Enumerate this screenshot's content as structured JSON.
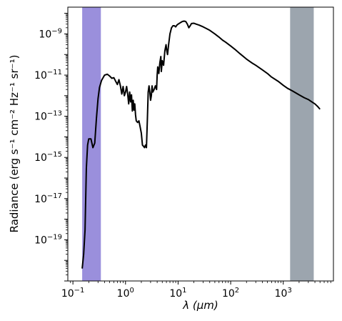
{
  "chart_data": {
    "type": "line",
    "title": "",
    "xlabel": "λ (μm)",
    "ylabel": "Radiance (erg s⁻¹ cm⁻² Hz⁻¹ sr⁻¹)",
    "xscale": "log",
    "yscale": "log",
    "xlim": [
      0.08,
      9000
    ],
    "ylim": [
      1e-21,
      2e-08
    ],
    "grid": false,
    "legend": "none",
    "x_ticks": [
      {
        "value": 0.1,
        "base": "10",
        "exp": "−1"
      },
      {
        "value": 1,
        "base": "10",
        "exp": "0"
      },
      {
        "value": 10,
        "base": "10",
        "exp": "1"
      },
      {
        "value": 100,
        "base": "10",
        "exp": "2"
      },
      {
        "value": 1000,
        "base": "10",
        "exp": "3"
      }
    ],
    "y_ticks": [
      {
        "value": 1e-19,
        "base": "10",
        "exp": "−19"
      },
      {
        "value": 1e-17,
        "base": "10",
        "exp": "−17"
      },
      {
        "value": 1e-15,
        "base": "10",
        "exp": "−15"
      },
      {
        "value": 1e-13,
        "base": "10",
        "exp": "−13"
      },
      {
        "value": 1e-11,
        "base": "10",
        "exp": "−11"
      },
      {
        "value": 1e-09,
        "base": "10",
        "exp": "−9"
      }
    ],
    "bands": [
      {
        "x_min": 0.15,
        "x_max": 0.34,
        "color": "#9a8fdc"
      },
      {
        "x_min": 1350,
        "x_max": 3800,
        "color": "#9ca5ae"
      }
    ],
    "series": [
      {
        "color": "#000000",
        "x": [
          0.15,
          0.16,
          0.17,
          0.18,
          0.19,
          0.2,
          0.22,
          0.24,
          0.26,
          0.28,
          0.3,
          0.32,
          0.35,
          0.4,
          0.45,
          0.5,
          0.55,
          0.6,
          0.65,
          0.7,
          0.75,
          0.8,
          0.85,
          0.9,
          0.95,
          1.0,
          1.05,
          1.1,
          1.15,
          1.2,
          1.25,
          1.3,
          1.35,
          1.4,
          1.45,
          1.5,
          1.55,
          1.6,
          1.7,
          1.8,
          1.9,
          2.0,
          2.1,
          2.2,
          2.3,
          2.4,
          2.5,
          2.6,
          2.7,
          2.8,
          2.9,
          3.0,
          3.1,
          3.2,
          3.3,
          3.5,
          3.7,
          3.9,
          4.0,
          4.1,
          4.3,
          4.5,
          4.7,
          4.8,
          5.0,
          5.3,
          5.6,
          5.9,
          6.1,
          6.3,
          6.6,
          7.0,
          7.5,
          8.0,
          8.5,
          9.0,
          9.5,
          10,
          11,
          12,
          13,
          14,
          15,
          16,
          17,
          18,
          20,
          22,
          25,
          30,
          35,
          40,
          50,
          60,
          70,
          80,
          100,
          120,
          150,
          200,
          250,
          300,
          400,
          500,
          600,
          800,
          1000,
          1200,
          1500,
          2000,
          2500,
          3000,
          3500,
          4000,
          4500,
          5000
        ],
        "y": [
          4e-21,
          2e-20,
          3e-19,
          3e-16,
          4e-15,
          8e-15,
          8e-15,
          3e-15,
          5e-15,
          8e-14,
          7e-13,
          2.5e-12,
          5.5e-12,
          1e-11,
          1.1e-11,
          9e-12,
          7e-12,
          7.5e-12,
          5e-12,
          3.5e-12,
          6e-12,
          3e-12,
          1.2e-12,
          2.8e-12,
          1e-12,
          1.5e-12,
          2.8e-12,
          1.2e-12,
          4e-13,
          1.5e-12,
          5e-13,
          1.1e-12,
          1.8e-13,
          6e-13,
          2e-13,
          4e-13,
          1.2e-13,
          6e-14,
          5e-14,
          6e-14,
          3e-14,
          1.5e-14,
          4e-15,
          3.5e-15,
          3e-15,
          4e-15,
          3e-15,
          6e-14,
          1.5e-12,
          3e-12,
          1.5e-12,
          6e-13,
          1e-12,
          3e-12,
          1.5e-12,
          2e-12,
          3e-12,
          2e-12,
          1e-11,
          2.5e-11,
          1.2e-11,
          4e-11,
          8e-11,
          1.5e-11,
          5e-11,
          3e-11,
          1.5e-10,
          3e-10,
          1.5e-10,
          1e-10,
          3e-10,
          1e-09,
          2e-09,
          2.5e-09,
          2.5e-09,
          2.2e-09,
          2.7e-09,
          3e-09,
          3.5e-09,
          4e-09,
          4.2e-09,
          4e-09,
          3e-09,
          2e-09,
          2.5e-09,
          3.2e-09,
          3.3e-09,
          3e-09,
          2.7e-09,
          2.2e-09,
          1.8e-09,
          1.5e-09,
          1e-09,
          7e-10,
          5e-10,
          4e-10,
          2.6e-10,
          1.8e-10,
          1.1e-10,
          6e-11,
          4e-11,
          3e-11,
          1.8e-11,
          1.2e-11,
          8e-12,
          5e-12,
          3.2e-12,
          2.3e-12,
          1.7e-12,
          1.1e-12,
          8e-13,
          6.5e-13,
          5e-13,
          4e-13,
          3e-13,
          2.2e-13
        ]
      }
    ]
  }
}
